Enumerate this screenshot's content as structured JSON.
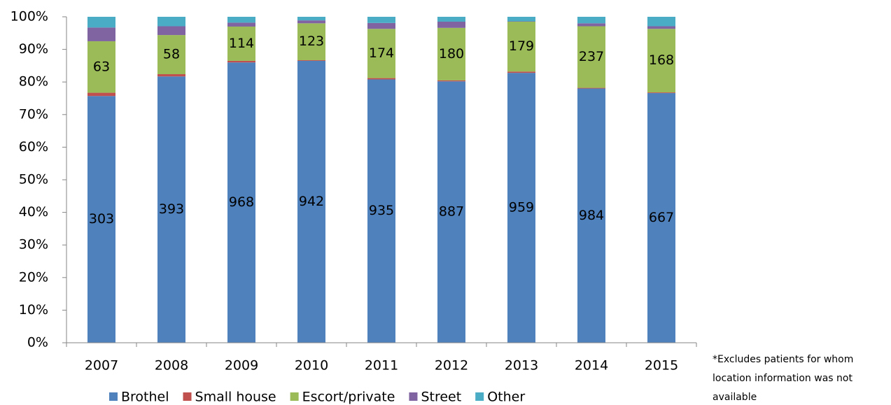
{
  "chart_data": {
    "type": "stacked_bar_100",
    "categories": [
      "2007",
      "2008",
      "2009",
      "2010",
      "2011",
      "2012",
      "2013",
      "2014",
      "2015"
    ],
    "series": [
      {
        "name": "Brothel",
        "color": "#4f81bd",
        "values": [
          75.7,
          81.7,
          86.0,
          86.5,
          80.8,
          80.2,
          82.8,
          78.0,
          76.6
        ],
        "counts": [
          303,
          393,
          968,
          942,
          935,
          887,
          959,
          984,
          667
        ]
      },
      {
        "name": "Small house",
        "color": "#c0504d",
        "values": [
          1.0,
          0.7,
          0.5,
          0.2,
          0.4,
          0.3,
          0.4,
          0.2,
          0.2
        ]
      },
      {
        "name": "Escort/private",
        "color": "#9bbb59",
        "values": [
          15.8,
          12.0,
          10.5,
          11.3,
          15.1,
          16.1,
          15.3,
          18.9,
          19.5
        ],
        "counts": [
          63,
          58,
          114,
          123,
          174,
          180,
          179,
          237,
          168
        ]
      },
      {
        "name": "Street",
        "color": "#8064a2",
        "values": [
          4.2,
          2.7,
          1.2,
          0.9,
          1.8,
          1.9,
          0.1,
          0.9,
          0.8
        ]
      },
      {
        "name": "Other",
        "color": "#4bacc6",
        "values": [
          3.3,
          2.9,
          1.8,
          1.1,
          1.9,
          1.5,
          1.4,
          2.0,
          2.9
        ]
      }
    ],
    "ylim": [
      0,
      100
    ],
    "yticks": [
      {
        "value": 0,
        "label": "0%"
      },
      {
        "value": 10,
        "label": "10%"
      },
      {
        "value": 20,
        "label": "20%"
      },
      {
        "value": 30,
        "label": "30%"
      },
      {
        "value": 40,
        "label": "40%"
      },
      {
        "value": 50,
        "label": "50%"
      },
      {
        "value": 60,
        "label": "60%"
      },
      {
        "value": 70,
        "label": "70%"
      },
      {
        "value": 80,
        "label": "80%"
      },
      {
        "value": 90,
        "label": "90%"
      },
      {
        "value": 100,
        "label": "100%"
      }
    ],
    "grid": false,
    "legend": "bottom",
    "footnote": [
      "*Excludes patients for whom",
      "location information was not",
      "available"
    ]
  }
}
